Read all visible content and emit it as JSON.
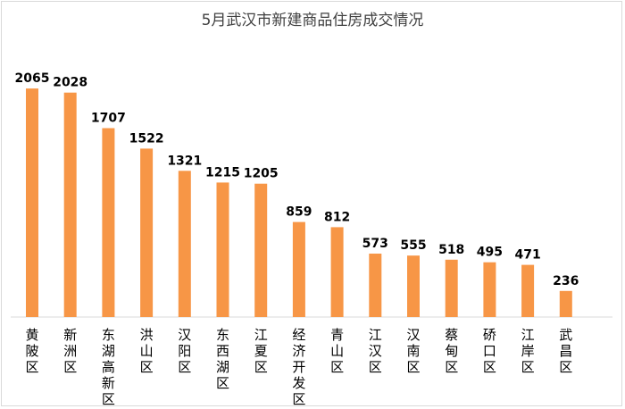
{
  "chart_data": {
    "type": "bar",
    "title": "5月武汉市新建商品住房成交情况",
    "xlabel": "",
    "ylabel": "",
    "ylim": [
      0,
      2300
    ],
    "grid": false,
    "legend": "none",
    "bar_color": "#f79646",
    "categories": [
      "黄陂区",
      "新洲区",
      "东湖高新区",
      "洪山区",
      "汉阳区",
      "东西湖区",
      "江夏区",
      "经济开发区",
      "青山区",
      "江汉区",
      "汉南区",
      "蔡甸区",
      "硚口区",
      "江岸区",
      "武昌区"
    ],
    "values": [
      2065,
      2028,
      1707,
      1522,
      1321,
      1215,
      1205,
      859,
      812,
      573,
      555,
      518,
      495,
      471,
      236
    ]
  }
}
